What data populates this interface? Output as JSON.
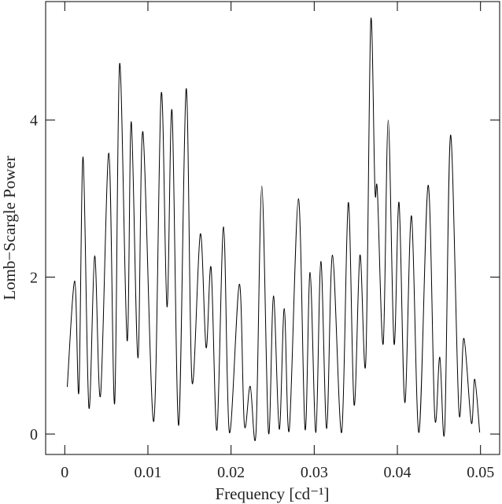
{
  "chart_data": {
    "type": "line",
    "x_label": "Frequency [cd⁻¹]",
    "y_label": "Lomb−Scargle Power",
    "xlim": [
      -0.0023,
      0.0523
    ],
    "ylim": [
      -0.26,
      5.51
    ],
    "xticks": [
      0,
      0.01,
      0.02,
      0.03,
      0.04,
      0.05
    ],
    "yticks": [
      0,
      2,
      4
    ],
    "series": [
      {
        "color": "#000000",
        "x": [
          0.0003,
          0.0012,
          0.0017,
          0.0022,
          0.0029,
          0.0036,
          0.0043,
          0.0053,
          0.006,
          0.0066,
          0.0075,
          0.008,
          0.0088,
          0.0094,
          0.0107,
          0.0116,
          0.0123,
          0.0129,
          0.0137,
          0.0146,
          0.0153,
          0.0163,
          0.017,
          0.0176,
          0.0183,
          0.0191,
          0.0198,
          0.021,
          0.0216,
          0.0223,
          0.023,
          0.0237,
          0.0245,
          0.0251,
          0.0258,
          0.0264,
          0.027,
          0.0281,
          0.0289,
          0.0295,
          0.0302,
          0.0308,
          0.0315,
          0.0322,
          0.0333,
          0.0341,
          0.0348,
          0.0355,
          0.0362,
          0.0368,
          0.0373,
          0.0376,
          0.0383,
          0.0389,
          0.0396,
          0.0402,
          0.0409,
          0.0417,
          0.0426,
          0.0437,
          0.0445,
          0.0451,
          0.0457,
          0.0464,
          0.0474,
          0.048,
          0.0489,
          0.0493,
          0.0499
        ],
        "values": [
          0.6,
          1.95,
          0.54,
          3.53,
          0.34,
          2.27,
          0.49,
          3.58,
          0.39,
          4.72,
          1.19,
          3.98,
          0.97,
          3.85,
          0.16,
          4.34,
          1.62,
          4.12,
          0.11,
          4.4,
          0.67,
          2.55,
          1.1,
          2.12,
          0.05,
          2.64,
          0.02,
          1.91,
          0.12,
          0.61,
          0.02,
          3.16,
          0.02,
          1.76,
          0.06,
          1.6,
          0.05,
          3.0,
          0.06,
          2.06,
          0.02,
          2.2,
          0.07,
          2.28,
          0.02,
          2.95,
          0.37,
          2.28,
          0.92,
          5.26,
          3.13,
          3.09,
          1.15,
          4.0,
          1.15,
          2.95,
          0.4,
          2.78,
          0.02,
          3.17,
          0.22,
          0.98,
          0.07,
          3.81,
          0.3,
          1.22,
          0.14,
          0.7,
          0.02
        ]
      }
    ]
  }
}
